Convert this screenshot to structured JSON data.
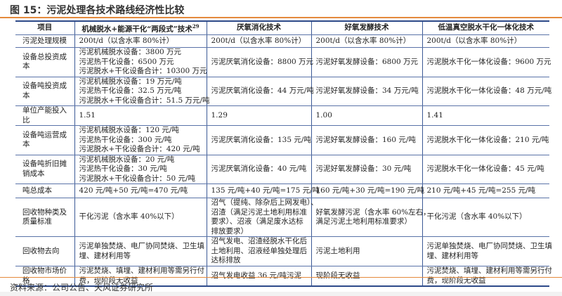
{
  "title": "图 15：污泥处理各技术路线经济性比较",
  "colors": {
    "accent_rule": "#e58a3c",
    "table_border": "#2d4a8a"
  },
  "table": {
    "headers": [
      "项目",
      "机械脱水+能源干化“两段式”技术",
      "厌氧消化技术",
      "好氧发酵技术",
      "低温真空脱水干化一体化技术"
    ],
    "header_footnote": "29",
    "rows": [
      {
        "label": "污泥处理规模",
        "cells": [
          [
            "200t/d（以含水率 80%计）"
          ],
          [
            "200t/d（以含水率 80%计）"
          ],
          [
            "200t/d（以含水率 80%计）"
          ],
          [
            "200t/d（以含水率 80%计）"
          ]
        ]
      },
      {
        "label": "设备总投资成本",
        "cells": [
          [
            "污泥机械脱水设备：3800 万元",
            "污泥热干化设备：6500 万元",
            "污泥脱水+干化设备合计：10300 万元"
          ],
          [
            "污泥厌氧消化设备：8800 万元"
          ],
          [
            "污泥好氧发酵设备：6800 万元"
          ],
          [
            "污泥脱水干化一体化设备：9600 万元"
          ]
        ]
      },
      {
        "label": "设备吨投资成本",
        "cells": [
          [
            "污泥机械脱水设备：19 万元/吨",
            "污泥热干化设备：32.5 万元/吨",
            "污泥脱水+干化设备合计：51.5 万元/吨"
          ],
          [
            "污泥厌氧消化设备：44 万元/吨"
          ],
          [
            "污泥好氧发酵设备：34 万元/吨"
          ],
          [
            "污泥脱水干化一体化设备：48 万元/吨"
          ]
        ]
      },
      {
        "label": "单位产能投入比",
        "cells": [
          [
            "1.51"
          ],
          [
            "1.29"
          ],
          [
            "1.00"
          ],
          [
            "1.41"
          ]
        ]
      },
      {
        "label": "设备吨运营成本",
        "cells": [
          [
            "污泥机械脱水设备：120 元/吨",
            "污泥热干化设备：300 元/吨",
            "污泥脱水+干化设备合计：420 元/吨"
          ],
          [
            "污泥厌氧消化设备：135 元/吨"
          ],
          [
            "污泥好氧发酵设备：160 元/吨"
          ],
          [
            "污泥脱水干化一体化设备：210 元/吨"
          ]
        ]
      },
      {
        "label": "设备吨折旧摊销成本",
        "cells": [
          [
            "污泥机械脱水设备：20 元/吨",
            "污泥热干化设备：30 元/吨",
            "污泥脱水+干化设备合计：50 元/吨"
          ],
          [
            "污泥厌氧消化设备：40 元/吨"
          ],
          [
            "污泥好氧发酵设备：30 元/吨"
          ],
          [
            "污泥脱水干化一体化设备：45 元/吨"
          ]
        ]
      },
      {
        "label": "吨总成本",
        "cells": [
          [
            "420 元/吨+50 元/吨=470 元/吨"
          ],
          [
            "135 元/吨+40 元/吨=175 元/吨"
          ],
          [
            "160 元/吨+30 元/吨=190 元/吨"
          ],
          [
            "210 元/吨+45 元/吨=255 元/吨"
          ]
        ]
      },
      {
        "label": "回收物种类及质量标准",
        "cells": [
          [
            "干化污泥（含水率 40%以下）"
          ],
          [
            "沼气（提纯、除杂后上网发电）、",
            "沼渣（满足污泥土地利用标准",
            "要求）、沼液（满足废水达标",
            "排放要求）"
          ],
          [
            "好氧发酵污泥（含水率 60%左右，",
            "满足污泥土地利用标准要求）"
          ],
          [
            "干化污泥（含水率 40%以下）"
          ]
        ]
      },
      {
        "label": "回收物去向",
        "cells": [
          [
            "污泥单独焚烧、电厂协同焚烧、卫生填",
            "埋、建材利用等"
          ],
          [
            "沼气发电、沼渣经脱水干化后",
            "土地利用、沼液经单独处理后",
            "达标排放"
          ],
          [
            "污泥土地利用"
          ],
          [
            "污泥单独焚烧、电厂协同焚烧、卫生填",
            "埋、建材利用等"
          ]
        ]
      },
      {
        "label": "回收物市场价格",
        "cells": [
          [
            "污泥焚烧、填埋、建材利用等需另行付",
            "费，现阶段无收益"
          ],
          [
            "沼气发电收益 36 元/吨污泥"
          ],
          [
            "现阶段无收益"
          ],
          [
            "污泥焚烧、填埋、建材利用等需另行付",
            "费，现阶段无收益"
          ]
        ]
      }
    ]
  },
  "source": "资料来源：公司公告、天风证券研究所"
}
